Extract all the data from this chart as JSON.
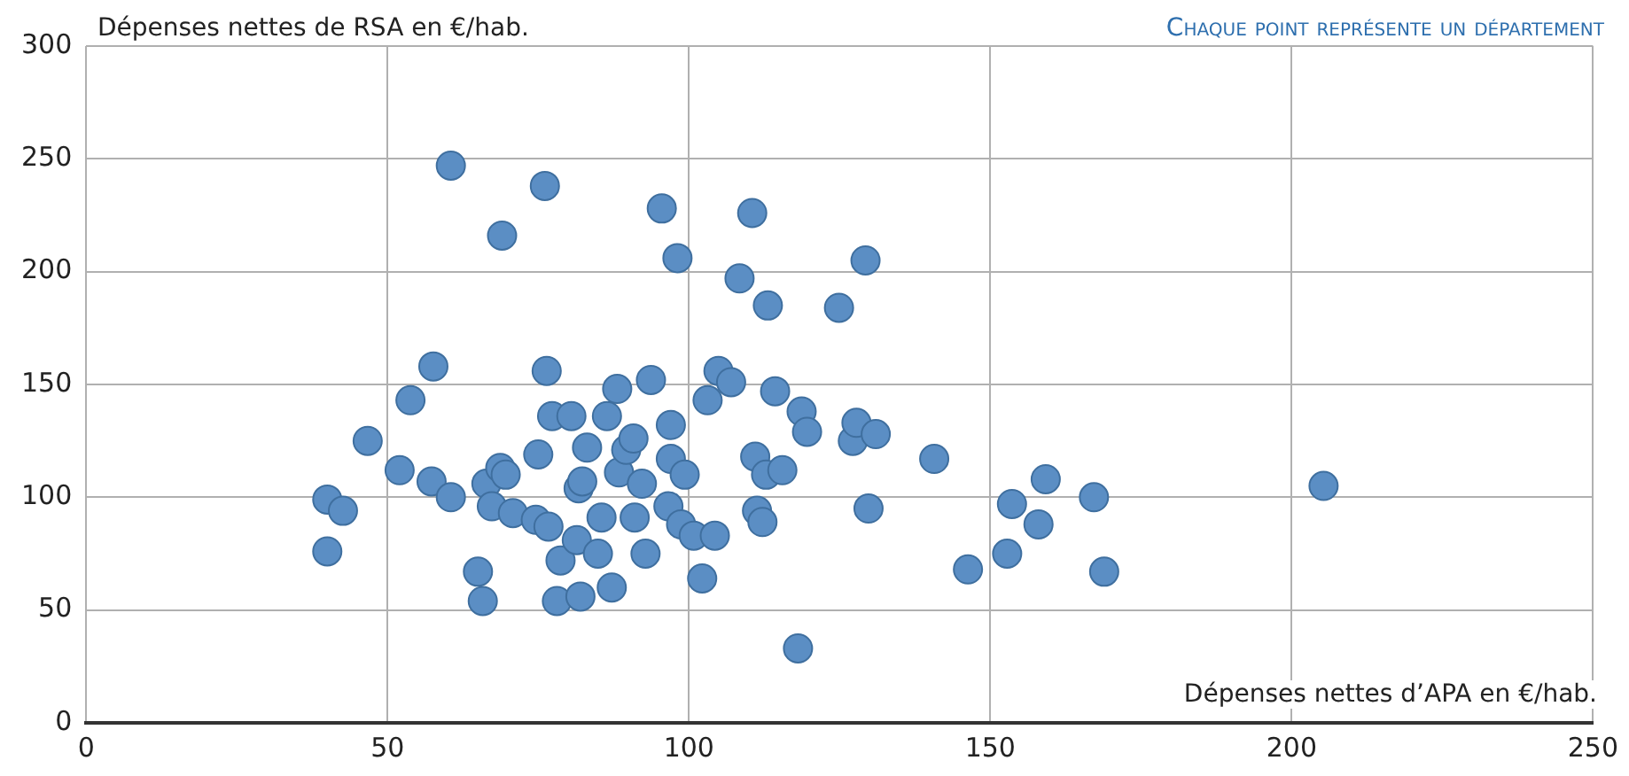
{
  "chart_data": {
    "type": "scatter",
    "ylabel": "Dépenses nettes de RSA en €/hab.",
    "xlabel": "Dépenses nettes d’APA en €/hab.",
    "annotations": [
      "Chaque point représente un département"
    ],
    "xlim": [
      0,
      250
    ],
    "xticks": [
      0,
      50,
      100,
      150,
      200,
      250
    ],
    "ylim": [
      0,
      300
    ],
    "yticks": [
      0,
      50,
      100,
      150,
      200,
      250,
      300
    ],
    "grid": true,
    "legend": false,
    "marker": "circle",
    "series": [
      {
        "color": "#5b8ec4",
        "x": [
          40,
          40,
          42.6,
          46.7,
          52,
          53.8,
          57.3,
          57.6,
          60.5,
          60.5,
          76.1,
          69,
          65,
          65.8,
          66.4,
          67.3,
          68.7,
          69.6,
          70.8,
          75,
          74.6,
          76.7,
          76.4,
          77.3,
          78.7,
          78.1,
          80.5,
          81.4,
          81.7,
          82.3,
          82,
          83.1,
          84.9,
          85.5,
          86.4,
          87.2,
          88.1,
          88.4,
          89.6,
          90.8,
          91,
          92.2,
          92.8,
          93.7,
          95.5,
          96.6,
          97,
          97,
          98.1,
          98.7,
          99.3,
          100.8,
          102.2,
          103.1,
          104.3,
          104.9,
          107,
          108.4,
          110.5,
          111,
          111.3,
          112.2,
          112.8,
          113.1,
          114.3,
          115.5,
          118.1,
          118.7,
          119.6,
          124.9,
          127.2,
          127.8,
          129.3,
          129.8,
          131,
          140.7,
          146.3,
          152.8,
          153.6,
          158,
          159.2,
          167.2,
          168.9,
          205.3
        ],
        "values": [
          76,
          99,
          94,
          125,
          112,
          143,
          107,
          158,
          247,
          100,
          238,
          216,
          67,
          54,
          106,
          96,
          113,
          110,
          93,
          119,
          90,
          87,
          156,
          136,
          72,
          54,
          136,
          81,
          104,
          107,
          56,
          122,
          75,
          91,
          136,
          60,
          148,
          111,
          121,
          126,
          91,
          106,
          75,
          152,
          228,
          96,
          132,
          117,
          206,
          88,
          110,
          83,
          64,
          143,
          83,
          156,
          151,
          197,
          226,
          118,
          94,
          89,
          110,
          185,
          147,
          112,
          33,
          138,
          129,
          184,
          125,
          133,
          205,
          95,
          128,
          117,
          68,
          75,
          97,
          88,
          108,
          100,
          67,
          105
        ]
      }
    ]
  }
}
